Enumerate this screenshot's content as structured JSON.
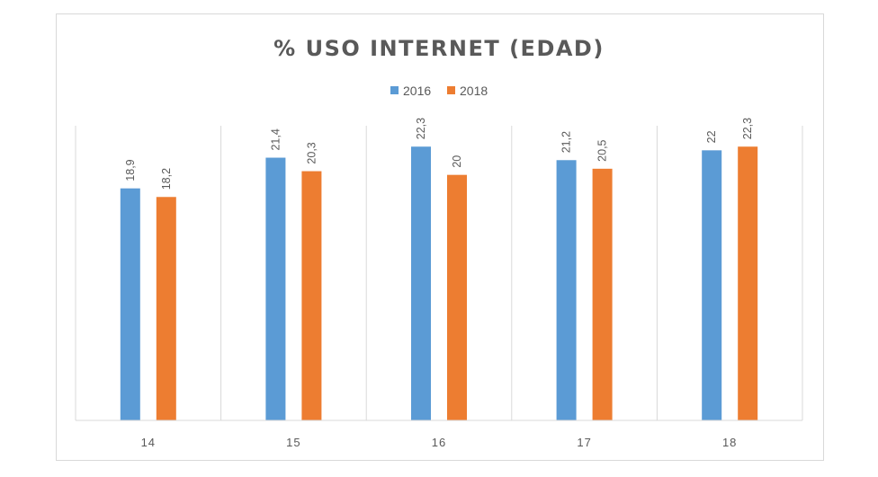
{
  "chart_data": {
    "type": "bar",
    "title": "% USO INTERNET (EDAD)",
    "categories": [
      "14",
      "15",
      "16",
      "17",
      "18"
    ],
    "series": [
      {
        "name": "2016",
        "color": "#5b9bd5",
        "values": [
          18.9,
          21.4,
          22.3,
          21.2,
          22
        ],
        "labels": [
          "18,9",
          "21,4",
          "22,3",
          "21,2",
          "22"
        ]
      },
      {
        "name": "2018",
        "color": "#ed7d31",
        "values": [
          18.2,
          20.3,
          20,
          20.5,
          22.3
        ],
        "labels": [
          "18,2",
          "20,3",
          "20",
          "20,5",
          "22,3"
        ]
      }
    ],
    "ylim": [
      0,
      24
    ],
    "grid": "vertical",
    "legend": "top-center",
    "data_labels": "rotated"
  }
}
